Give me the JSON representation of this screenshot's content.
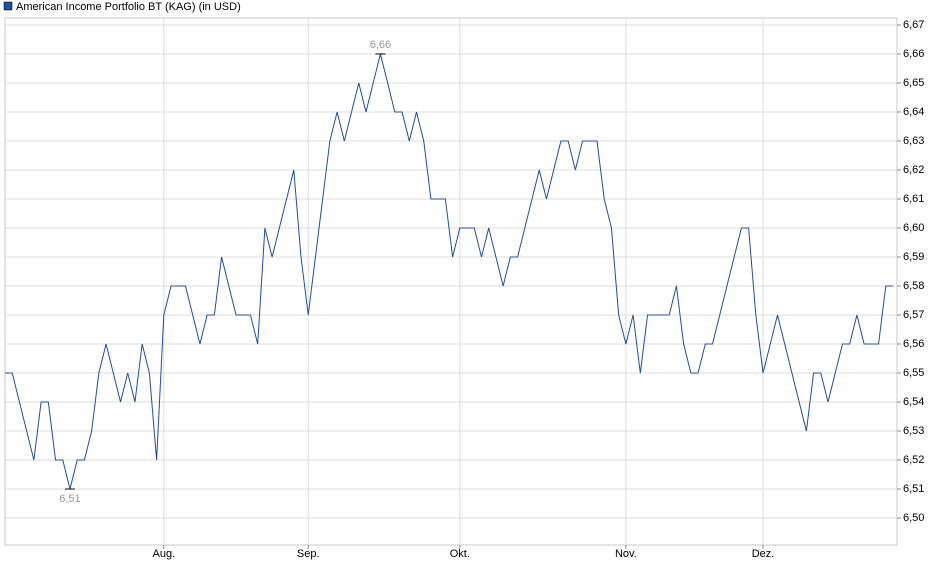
{
  "chart_data": {
    "type": "line",
    "series": [
      {
        "name": "American Income Portfolio BT (KAG) (in USD)",
        "color": "#1f4e9c",
        "values": [
          6.55,
          6.55,
          6.54,
          6.53,
          6.52,
          6.54,
          6.54,
          6.52,
          6.52,
          6.51,
          6.52,
          6.52,
          6.53,
          6.55,
          6.56,
          6.55,
          6.54,
          6.55,
          6.54,
          6.56,
          6.55,
          6.52,
          6.57,
          6.58,
          6.58,
          6.58,
          6.57,
          6.56,
          6.57,
          6.57,
          6.59,
          6.58,
          6.57,
          6.57,
          6.57,
          6.56,
          6.6,
          6.59,
          6.6,
          6.61,
          6.62,
          6.59,
          6.57,
          6.59,
          6.61,
          6.63,
          6.64,
          6.63,
          6.64,
          6.65,
          6.64,
          6.65,
          6.66,
          6.65,
          6.64,
          6.64,
          6.63,
          6.64,
          6.63,
          6.61,
          6.61,
          6.61,
          6.59,
          6.6,
          6.6,
          6.6,
          6.59,
          6.6,
          6.59,
          6.58,
          6.59,
          6.59,
          6.6,
          6.61,
          6.62,
          6.61,
          6.62,
          6.63,
          6.63,
          6.62,
          6.63,
          6.63,
          6.63,
          6.61,
          6.6,
          6.57,
          6.56,
          6.57,
          6.55,
          6.57,
          6.57,
          6.57,
          6.57,
          6.58,
          6.56,
          6.55,
          6.55,
          6.56,
          6.56,
          6.57,
          6.58,
          6.59,
          6.6,
          6.6,
          6.57,
          6.55,
          6.56,
          6.57,
          6.56,
          6.55,
          6.54,
          6.53,
          6.55,
          6.55,
          6.54,
          6.55,
          6.56,
          6.56,
          6.57,
          6.56,
          6.56,
          6.56,
          6.58,
          6.58
        ],
        "value_labels": [
          null,
          null,
          null,
          null,
          null,
          null,
          null,
          null,
          null,
          "6,51",
          null,
          null,
          null,
          null,
          null,
          null,
          null,
          null,
          null,
          null,
          null,
          null,
          null,
          null,
          null,
          null,
          null,
          null,
          null,
          null,
          null,
          null,
          null,
          null,
          null,
          null,
          null,
          null,
          null,
          null,
          null,
          null,
          null,
          null,
          null,
          null,
          null,
          null,
          null,
          null,
          null,
          null,
          "6,66",
          null,
          null,
          null,
          null,
          null,
          null,
          null,
          null,
          null,
          null,
          null,
          null,
          null,
          null,
          null,
          null,
          null,
          null,
          null,
          null,
          null,
          null,
          null,
          null,
          null,
          null,
          null,
          null,
          null,
          null,
          null,
          null,
          null,
          null,
          null,
          null,
          null,
          null,
          null,
          null,
          null,
          null,
          null,
          null,
          null,
          null,
          null,
          null,
          null,
          null,
          null,
          null,
          null,
          null,
          null,
          null,
          null,
          null,
          null,
          null,
          null,
          null,
          null,
          null,
          null,
          null,
          null,
          null,
          null,
          null,
          null
        ]
      }
    ],
    "categories": [
      null,
      null,
      null,
      null,
      null,
      null,
      null,
      null,
      null,
      null,
      null,
      null,
      null,
      null,
      null,
      null,
      null,
      null,
      null,
      null,
      null,
      null,
      "Aug.",
      null,
      null,
      null,
      null,
      null,
      null,
      null,
      null,
      null,
      null,
      null,
      null,
      null,
      null,
      null,
      null,
      null,
      null,
      null,
      "Sep.",
      null,
      null,
      null,
      null,
      null,
      null,
      null,
      null,
      null,
      null,
      null,
      null,
      null,
      null,
      null,
      null,
      null,
      null,
      null,
      null,
      "Okt.",
      null,
      null,
      null,
      null,
      null,
      null,
      null,
      null,
      null,
      null,
      null,
      null,
      null,
      null,
      null,
      null,
      null,
      null,
      null,
      null,
      null,
      null,
      "Nov.",
      null,
      null,
      null,
      null,
      null,
      null,
      null,
      null,
      null,
      null,
      null,
      null,
      null,
      null,
      null,
      null,
      null,
      null,
      "Dez.",
      null,
      null,
      null,
      null,
      null,
      null,
      null,
      null,
      null,
      null,
      null,
      null,
      null,
      null,
      null,
      null,
      null,
      null
    ],
    "ylim": [
      6.4907,
      6.6724
    ],
    "yticks": [
      {
        "value": 6.5,
        "label": "6,50"
      },
      {
        "value": 6.51,
        "label": "6,51"
      },
      {
        "value": 6.52,
        "label": "6,52"
      },
      {
        "value": 6.53,
        "label": "6,53"
      },
      {
        "value": 6.54,
        "label": "6,54"
      },
      {
        "value": 6.55,
        "label": "6,55"
      },
      {
        "value": 6.56,
        "label": "6,56"
      },
      {
        "value": 6.57,
        "label": "6,57"
      },
      {
        "value": 6.58,
        "label": "6,58"
      },
      {
        "value": 6.59,
        "label": "6,59"
      },
      {
        "value": 6.6,
        "label": "6,60"
      },
      {
        "value": 6.61,
        "label": "6,61"
      },
      {
        "value": 6.62,
        "label": "6,62"
      },
      {
        "value": 6.63,
        "label": "6,63"
      },
      {
        "value": 6.64,
        "label": "6,64"
      },
      {
        "value": 6.65,
        "label": "6,65"
      },
      {
        "value": 6.66,
        "label": "6,66"
      },
      {
        "value": 6.67,
        "label": "6,67"
      }
    ],
    "grid": true
  }
}
